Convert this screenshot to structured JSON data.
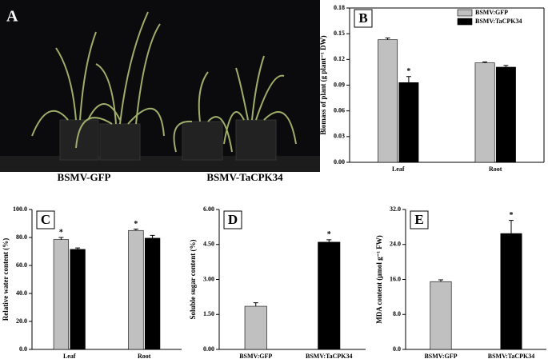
{
  "photo": {
    "label": "A",
    "captions": [
      "BSMV-GFP",
      "BSMV-TaCPK34"
    ]
  },
  "chart_data": [
    {
      "type": "bar",
      "label": "B",
      "ylabel": "Biomass of plant (g plant⁻¹ DW)",
      "categories": [
        "Leaf",
        "Root"
      ],
      "series": [
        {
          "name": "BSMV:GFP",
          "color": "#c0c0c0",
          "values": [
            0.143,
            0.116
          ],
          "errors": [
            0.002,
            0.001
          ],
          "annotations": [
            null,
            null
          ]
        },
        {
          "name": "BSMV:TaCPK34",
          "color": "#000000",
          "values": [
            0.093,
            0.111
          ],
          "errors": [
            0.007,
            0.002
          ],
          "annotations": [
            "*",
            null
          ]
        }
      ],
      "ylim": [
        0,
        0.18
      ],
      "yticks": [
        {
          "value": 0,
          "label": "0.00"
        },
        0.03,
        0.06,
        0.09,
        0.12,
        0.15,
        0.18
      ],
      "legend": "upper right"
    },
    {
      "type": "bar",
      "label": "C",
      "ylabel": "Relative water content (%)",
      "categories": [
        "Leaf",
        "Root"
      ],
      "series": [
        {
          "color": "#c0c0c0",
          "values": [
            78.5,
            85
          ],
          "errors": [
            1.5,
            1
          ],
          "annotations": [
            "*",
            "*"
          ]
        },
        {
          "color": "#000000",
          "values": [
            71.5,
            79.5
          ],
          "errors": [
            1,
            2
          ],
          "annotations": [
            null,
            null
          ]
        }
      ],
      "ylim": [
        0,
        100
      ],
      "yticks": [
        {
          "value": 0,
          "label": "0.0"
        },
        {
          "value": 20,
          "label": "20.0"
        },
        {
          "value": 40,
          "label": "40.0"
        },
        {
          "value": 60,
          "label": "60.0"
        },
        {
          "value": 80,
          "label": "80.0"
        },
        {
          "value": 100,
          "label": "100.0"
        }
      ]
    },
    {
      "type": "bar",
      "label": "D",
      "ylabel": "Soluble sugar content (%)",
      "categories": [
        "BSMV:GFP",
        "BSMV:TaCPK34"
      ],
      "values": [
        1.85,
        4.6
      ],
      "errors": [
        0.15,
        0.1
      ],
      "colors": [
        "#c0c0c0",
        "#000000"
      ],
      "annotations": [
        null,
        "*"
      ],
      "ylim": [
        0,
        6
      ],
      "yticks": [
        {
          "value": 0,
          "label": "0.00"
        },
        {
          "value": 1.5,
          "label": "1.50"
        },
        {
          "value": 3,
          "label": "3.00"
        },
        {
          "value": 4.5,
          "label": "4.50"
        },
        {
          "value": 6,
          "label": "6.00"
        }
      ]
    },
    {
      "type": "bar",
      "label": "E",
      "ylabel": "MDA content (μmol g⁻¹ FW)",
      "categories": [
        "BSMV:GFP",
        "BSMV:TaCPK34"
      ],
      "values": [
        15.5,
        26.5
      ],
      "errors": [
        0.4,
        3
      ],
      "colors": [
        "#c0c0c0",
        "#000000"
      ],
      "annotations": [
        null,
        "*"
      ],
      "ylim": [
        0,
        32
      ],
      "yticks": [
        {
          "value": 0,
          "label": "0.0"
        },
        {
          "value": 8,
          "label": "8.0"
        },
        {
          "value": 16,
          "label": "16.0"
        },
        {
          "value": 24,
          "label": "24.0"
        },
        {
          "value": 32,
          "label": "32.0"
        }
      ]
    }
  ]
}
